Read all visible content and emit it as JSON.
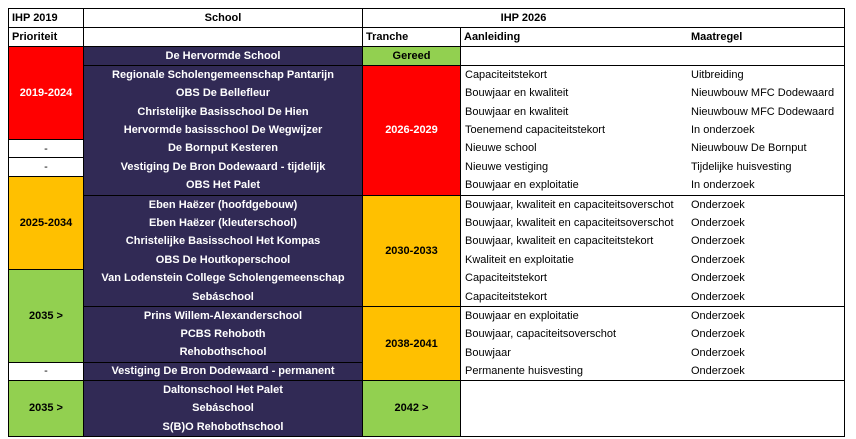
{
  "header": {
    "ihp2019": "IHP 2019",
    "prioriteit": "Prioriteit",
    "school": "School",
    "ihp2026": "IHP 2026",
    "tranche": "Tranche",
    "aanleiding": "Aanleiding",
    "maatregel": "Maatregel"
  },
  "prioriteit_cells": [
    "2019-2024",
    "-",
    "-",
    "2025-2034",
    "2035 >",
    "-",
    "2035 >"
  ],
  "tranche_cells": [
    "Gereed",
    "2026-2029",
    "2030-2033",
    "2038-2041",
    "2042 >"
  ],
  "school_groups": [
    [
      "De Hervormde School"
    ],
    [
      "Regionale Scholengemeenschap Pantarijn",
      "OBS De Bellefleur",
      "Christelijke Basisschool De Hien",
      "Hervormde basisschool De Wegwijzer",
      "De Bornput Kesteren",
      "Vestiging De Bron Dodewaard - tijdelijk",
      "OBS Het Palet"
    ],
    [
      "Eben Haëzer (hoofdgebouw)",
      "Eben Haëzer (kleuterschool)",
      "Christelijke Basisschool Het Kompas",
      "OBS De Houtkoperschool",
      "Van Lodenstein College Scholengemeenschap",
      "Sebáschool"
    ],
    [
      "Prins Willem-Alexanderschool",
      "PCBS Rehoboth",
      "Rehobothschool"
    ],
    [
      "Vestiging De Bron Dodewaard - permanent"
    ],
    [
      "Daltonschool Het Palet",
      "Sebáschool",
      "S(B)O Rehobothschool"
    ]
  ],
  "details": {
    "group1": {
      "aanleiding": [
        "Capaciteitstekort",
        "Bouwjaar en kwaliteit",
        "Bouwjaar en kwaliteit",
        "Toenemend capaciteitstekort",
        "Nieuwe school",
        "Nieuwe vestiging",
        "Bouwjaar en exploitatie"
      ],
      "maatregel": [
        "Uitbreiding",
        "Nieuwbouw MFC Dodewaard",
        "Nieuwbouw MFC Dodewaard",
        "In onderzoek",
        "Nieuwbouw De Bornput",
        "Tijdelijke huisvesting",
        "In onderzoek"
      ]
    },
    "group2": {
      "aanleiding": [
        "Bouwjaar, kwaliteit en capaciteitsoverschot",
        "Bouwjaar, kwaliteit en capaciteitsoverschot",
        "Bouwjaar, kwaliteit en capaciteitstekort",
        "Kwaliteit en exploitatie",
        "Capaciteitstekort",
        "Capaciteitstekort"
      ],
      "maatregel": [
        "Onderzoek",
        "Onderzoek",
        "Onderzoek",
        "Onderzoek",
        "Onderzoek",
        "Onderzoek"
      ]
    },
    "group3": {
      "aanleiding": [
        "Bouwjaar en exploitatie",
        "Bouwjaar, capaciteitsoverschot",
        "Bouwjaar",
        "Permanente huisvesting"
      ],
      "maatregel": [
        "Onderzoek",
        "Onderzoek",
        "Onderzoek",
        "Onderzoek"
      ]
    }
  },
  "colors": {
    "red": "#FF0000",
    "orange": "#FFC000",
    "green": "#92D050",
    "navy": "#312A55",
    "border": "#000000",
    "text_on_dark": "#FFFFFF",
    "text_on_light": "#000000"
  }
}
